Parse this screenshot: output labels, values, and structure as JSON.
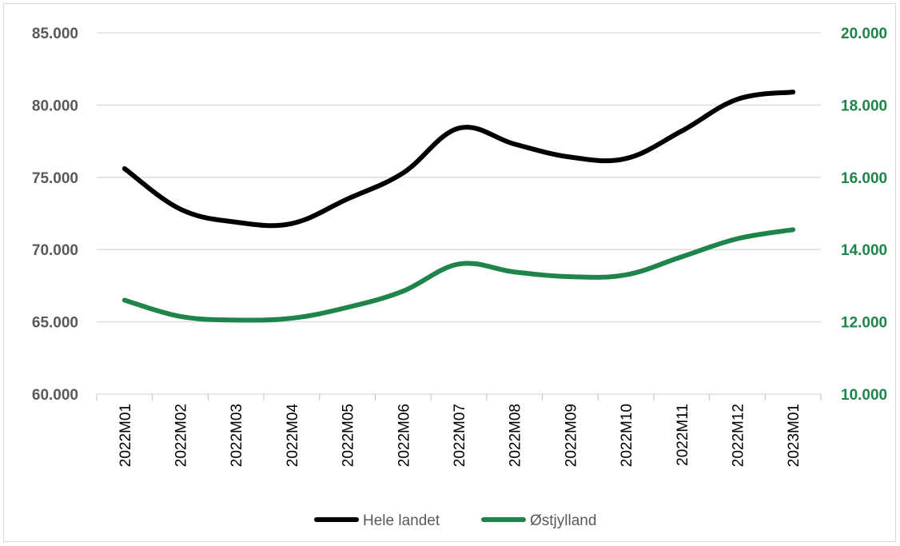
{
  "chart_data": {
    "type": "line",
    "categories": [
      "2022M01",
      "2022M02",
      "2022M03",
      "2022M04",
      "2022M05",
      "2022M06",
      "2022M07",
      "2022M08",
      "2022M09",
      "2022M10",
      "2022M11",
      "2022M12",
      "2023M01"
    ],
    "series": [
      {
        "name": "Hele landet",
        "axis": "left",
        "color": "#000000",
        "values": [
          75600,
          72800,
          71900,
          71800,
          73500,
          75300,
          78400,
          77300,
          76400,
          76300,
          78200,
          80400,
          80900
        ]
      },
      {
        "name": "Østjylland",
        "axis": "right",
        "color": "#1e8449",
        "values": [
          12600,
          12150,
          12050,
          12100,
          12400,
          12850,
          13600,
          13380,
          13250,
          13300,
          13800,
          14300,
          14550
        ]
      }
    ],
    "y_left": {
      "min": 60000,
      "max": 85000,
      "ticks": [
        "60.000",
        "65.000",
        "70.000",
        "75.000",
        "80.000",
        "85.000"
      ]
    },
    "y_right": {
      "min": 10000,
      "max": 20000,
      "ticks": [
        "10.000",
        "12.000",
        "14.000",
        "16.000",
        "18.000",
        "20.000"
      ],
      "color": "#1e8449"
    },
    "grid": true,
    "legend": "bottom-center",
    "title": "",
    "xlabel": "",
    "ylabel": ""
  }
}
